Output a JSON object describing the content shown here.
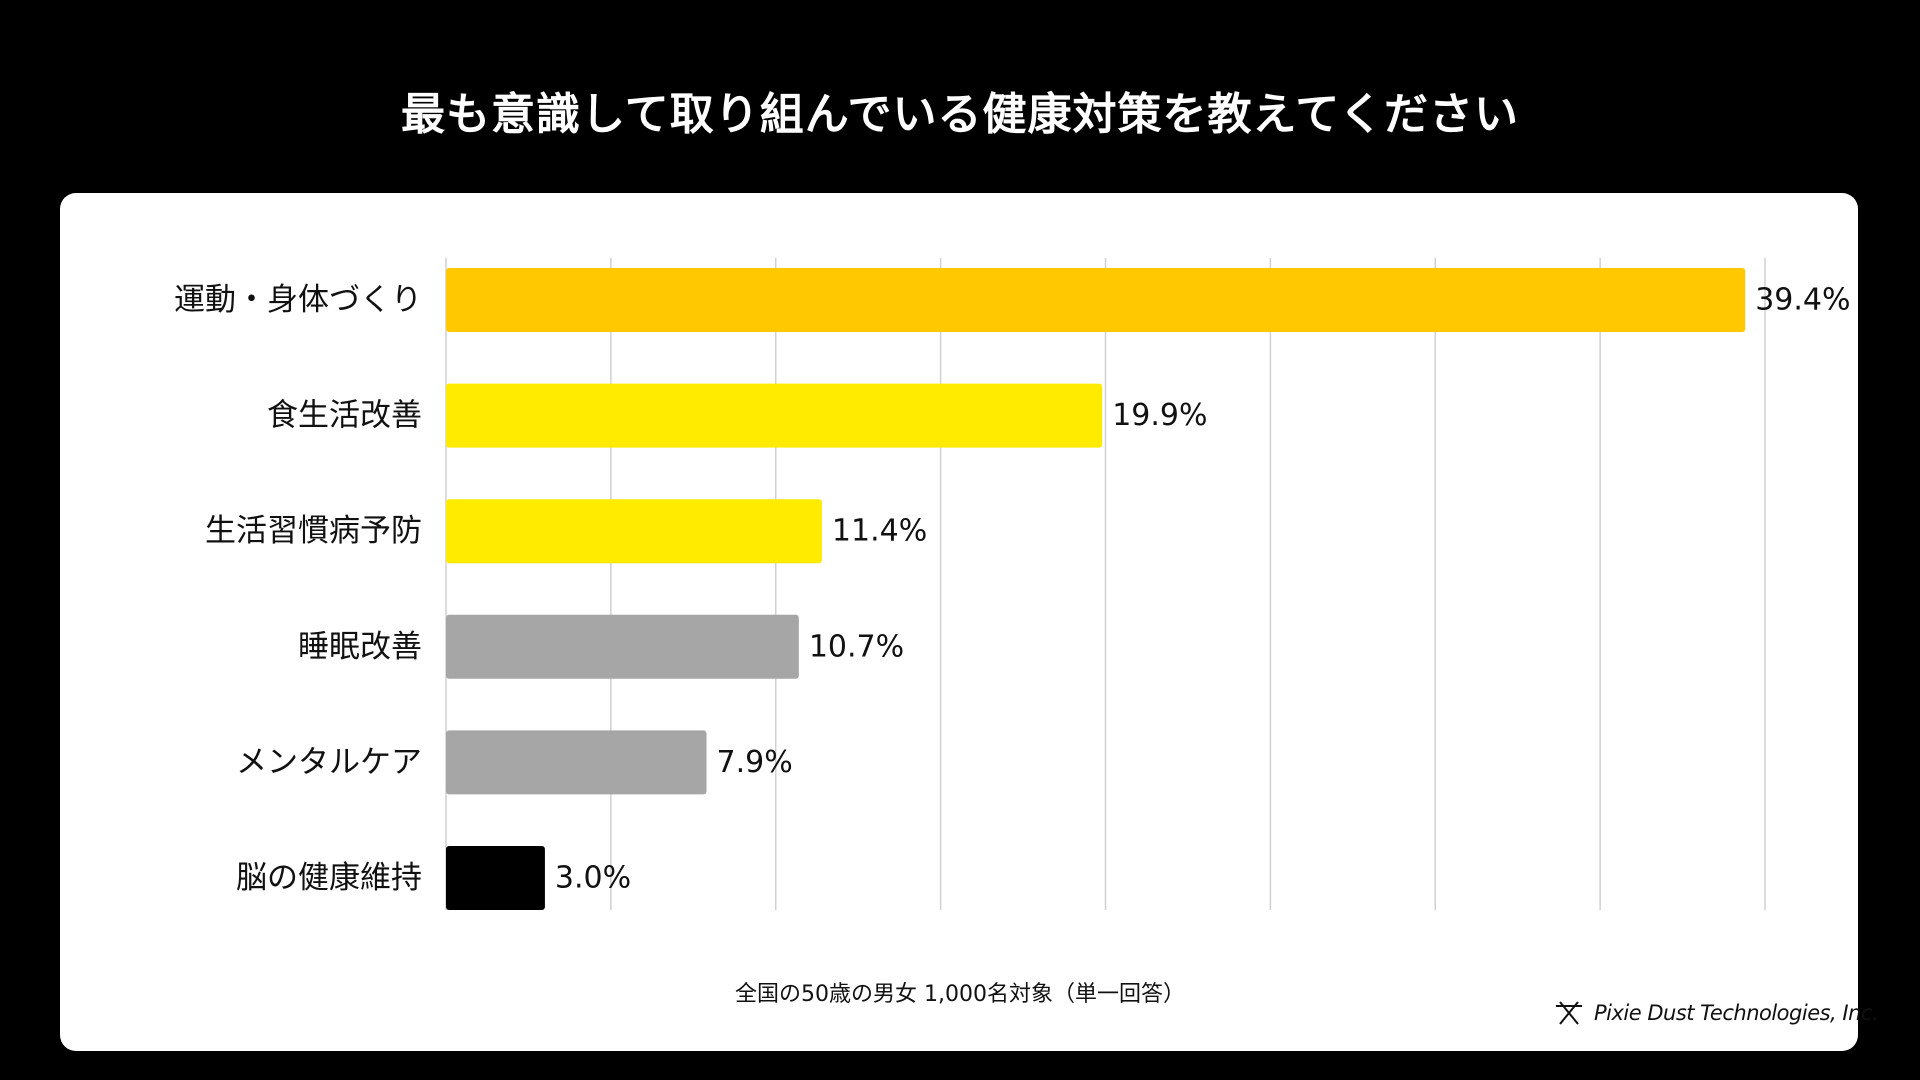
{
  "title": "最も意識して取り組んでいる健康対策を教えてください",
  "note": "全国の50歳の男女 1,000名対象（単一回答）",
  "brand": {
    "name": "Pixie Dust Technologies, Inc.",
    "icon": "asterisk-logo-icon"
  },
  "colors": {
    "background": "#000000",
    "card": "#ffffff",
    "gridline": "#d0d0d0",
    "orange": "#ffc800",
    "yellow": "#ffeb00",
    "gray": "#a6a6a6",
    "black": "#000000"
  },
  "chart_data": {
    "type": "bar",
    "orientation": "horizontal",
    "title": "最も意識して取り組んでいる健康対策を教えてください",
    "categories": [
      "運動・身体づくり",
      "食生活改善",
      "生活習慣病予防",
      "睡眠改善",
      "メンタルケア",
      "脳の健康維持"
    ],
    "values": [
      39.4,
      19.9,
      11.4,
      10.7,
      7.9,
      3.0
    ],
    "value_labels": [
      "39.4%",
      "19.9%",
      "11.4%",
      "10.7%",
      "7.9%",
      "3.0%"
    ],
    "bar_colors": [
      "#ffc800",
      "#ffeb00",
      "#ffeb00",
      "#a6a6a6",
      "#a6a6a6",
      "#000000"
    ],
    "unit": "%",
    "xlim": [
      0,
      40
    ],
    "grid": true,
    "grid_step": 5,
    "legend": "none"
  }
}
